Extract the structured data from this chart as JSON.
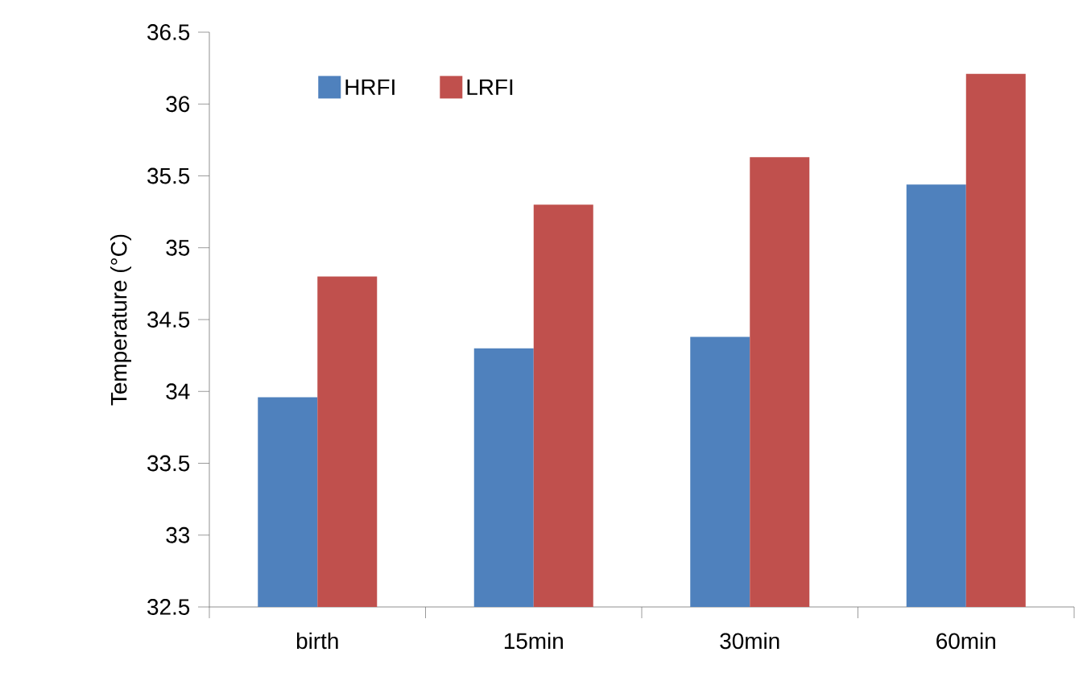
{
  "chart_data": {
    "type": "bar",
    "ylabel": "Temperature (°C)",
    "categories": [
      "birth",
      "15min",
      "30min",
      "60min"
    ],
    "series": [
      {
        "name": "HRFI",
        "color": "#4f81bd",
        "values": [
          33.96,
          34.3,
          34.38,
          35.44
        ]
      },
      {
        "name": "LRFI",
        "color": "#c0504d",
        "values": [
          34.8,
          35.3,
          35.63,
          36.21
        ]
      }
    ],
    "ylim": [
      32.5,
      36.5
    ],
    "yticks": [
      32.5,
      33,
      33.5,
      34,
      34.5,
      35,
      35.5,
      36,
      36.5
    ],
    "legend": "top left",
    "grid": false
  }
}
